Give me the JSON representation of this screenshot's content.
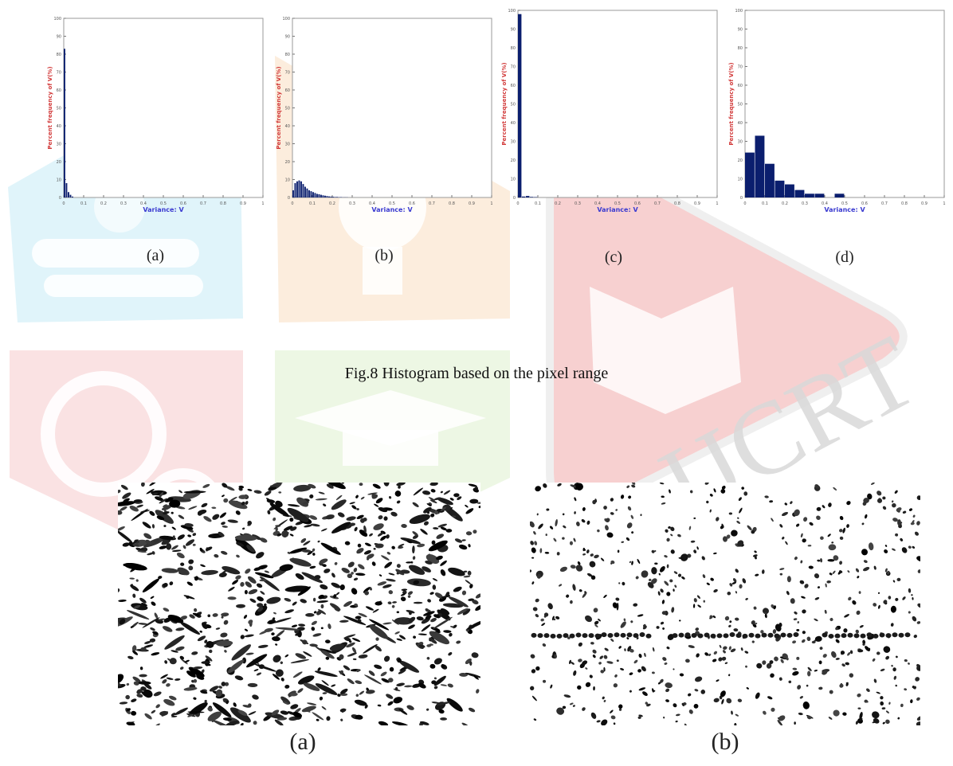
{
  "figure8": {
    "caption": "Fig.8 Histogram based on the pixel range",
    "panel_labels": [
      "(a)",
      "(b)",
      "(c)",
      "(d)"
    ]
  },
  "figure9": {
    "panel_labels": [
      "(a)",
      "(b)"
    ]
  },
  "watermark": {
    "text": "IJCRT"
  },
  "chart_data": [
    {
      "type": "bar",
      "xlabel": "Variance: V",
      "ylabel": "Percent frequency of V(%)",
      "xlim": [
        0,
        1
      ],
      "ylim": [
        0,
        100
      ],
      "xticks": [
        "0",
        "0.1",
        "0.2",
        "0.3",
        "0.4",
        "0.5",
        "0.6",
        "0.7",
        "0.8",
        "0.9",
        "1"
      ],
      "yticks": [
        "0",
        "10",
        "20",
        "30",
        "40",
        "50",
        "60",
        "70",
        "80",
        "90",
        "100"
      ],
      "bin_width": 0.01,
      "x": [
        0.005,
        0.015,
        0.025,
        0.035,
        0.045
      ],
      "values": [
        83,
        8,
        3,
        1.5,
        0.5
      ],
      "color": "#0b1e6e"
    },
    {
      "type": "bar",
      "xlabel": "Variance: V",
      "ylabel": "Percent frequency of V(%)",
      "xlim": [
        0,
        1
      ],
      "ylim": [
        0,
        100
      ],
      "xticks": [
        "0",
        "0.1",
        "0.2",
        "0.3",
        "0.4",
        "0.5",
        "0.6",
        "0.7",
        "0.8",
        "0.9",
        "1"
      ],
      "yticks": [
        "0",
        "10",
        "20",
        "30",
        "40",
        "50",
        "60",
        "70",
        "80",
        "90",
        "100"
      ],
      "bin_width": 0.01,
      "x": [
        0.005,
        0.015,
        0.025,
        0.035,
        0.045,
        0.055,
        0.065,
        0.075,
        0.085,
        0.095,
        0.105,
        0.115,
        0.125,
        0.135,
        0.145,
        0.155,
        0.165,
        0.175,
        0.185,
        0.195,
        0.205,
        0.215,
        0.225,
        0.235,
        0.245,
        0.255,
        0.265,
        0.275
      ],
      "values": [
        4,
        8,
        9,
        9.5,
        9,
        7.5,
        6,
        5,
        4,
        3.5,
        3,
        2.5,
        2,
        1.8,
        1.5,
        1.2,
        1,
        0.8,
        0.6,
        0.5,
        0.4,
        0.3,
        0.3,
        0.2,
        0.2,
        0.1,
        0.1,
        0.1
      ],
      "color": "#0b1e6e"
    },
    {
      "type": "bar",
      "xlabel": "Variance: V",
      "ylabel": "Percent frequency of V(%)",
      "xlim": [
        0,
        1
      ],
      "ylim": [
        0,
        100
      ],
      "xticks": [
        "0",
        "0.1",
        "0.2",
        "0.3",
        "0.4",
        "0.5",
        "0.6",
        "0.7",
        "0.8",
        "0.9",
        "1"
      ],
      "yticks": [
        "0",
        "10",
        "20",
        "30",
        "40",
        "50",
        "60",
        "70",
        "80",
        "90",
        "100"
      ],
      "bin_width": 0.02,
      "x": [
        0.01,
        0.03,
        0.05,
        0.07,
        0.09
      ],
      "values": [
        98,
        0.5,
        0.8,
        0.3,
        0.2
      ],
      "color": "#0b1e6e"
    },
    {
      "type": "bar",
      "xlabel": "Variance: V",
      "ylabel": "Percent frequency of V(%)",
      "xlim": [
        0,
        1
      ],
      "ylim": [
        0,
        100
      ],
      "xticks": [
        "0",
        "0.1",
        "0.2",
        "0.3",
        "0.4",
        "0.5",
        "0.6",
        "0.7",
        "0.8",
        "0.9",
        "1"
      ],
      "yticks": [
        "0",
        "10",
        "20",
        "30",
        "40",
        "50",
        "60",
        "70",
        "80",
        "90",
        "100"
      ],
      "bin_width": 0.05,
      "x": [
        0.025,
        0.075,
        0.125,
        0.175,
        0.225,
        0.275,
        0.325,
        0.375,
        0.425,
        0.475
      ],
      "values": [
        24,
        33,
        18,
        9,
        7,
        4,
        2,
        2,
        0,
        2
      ],
      "color": "#0b1e6e"
    }
  ]
}
